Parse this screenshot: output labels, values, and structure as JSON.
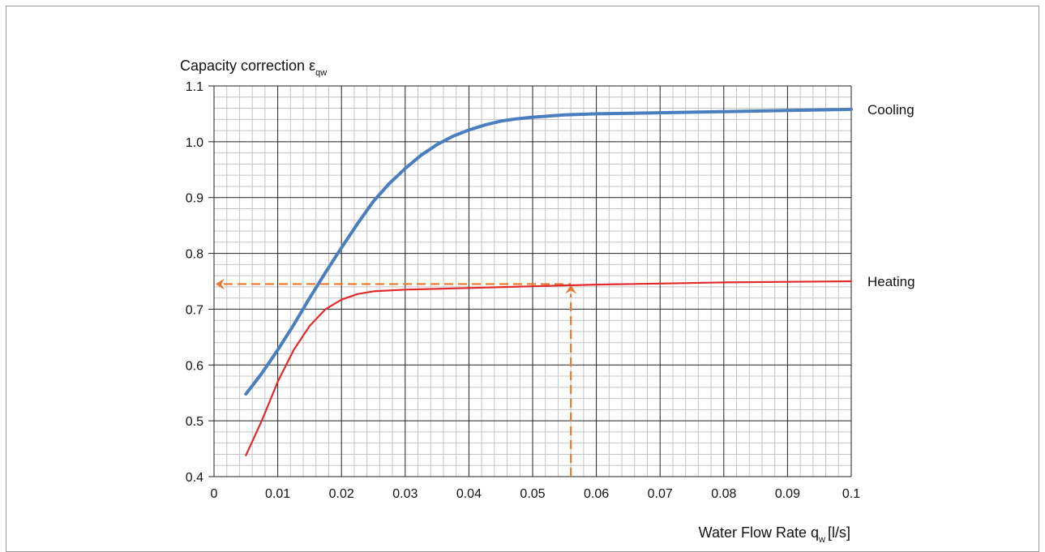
{
  "chart_data": {
    "type": "line",
    "title": "",
    "ylabel": {
      "main": "Capacity correction ε",
      "sub": "qw"
    },
    "xlabel": {
      "main": "Water Flow Rate q",
      "sub": "w",
      "suffix": "[l/s]"
    },
    "xlim": [
      0,
      0.1
    ],
    "ylim": [
      0.4,
      1.1
    ],
    "x_ticks": [
      0,
      0.01,
      0.02,
      0.03,
      0.04,
      0.05,
      0.06,
      0.07,
      0.08,
      0.09,
      0.1
    ],
    "x_tick_labels": [
      "0",
      "0.01",
      "0.02",
      "0.03",
      "0.04",
      "0.05",
      "0.06",
      "0.07",
      "0.08",
      "0.09",
      "0.1"
    ],
    "y_ticks": [
      0.4,
      0.5,
      0.6,
      0.7,
      0.8,
      0.9,
      1.0,
      1.1
    ],
    "y_tick_labels": [
      "0.4",
      "0.5",
      "0.6",
      "0.7",
      "0.8",
      "0.9",
      "1.0",
      "1.1"
    ],
    "grid": {
      "major": true,
      "minor": true,
      "minor_per_major": 5
    },
    "series": [
      {
        "name": "Cooling",
        "color": "#4a7ebf",
        "points": [
          [
            0.005,
            0.548
          ],
          [
            0.0075,
            0.585
          ],
          [
            0.01,
            0.627
          ],
          [
            0.0125,
            0.672
          ],
          [
            0.015,
            0.72
          ],
          [
            0.0175,
            0.766
          ],
          [
            0.02,
            0.81
          ],
          [
            0.0225,
            0.853
          ],
          [
            0.025,
            0.893
          ],
          [
            0.0275,
            0.925
          ],
          [
            0.03,
            0.952
          ],
          [
            0.0325,
            0.976
          ],
          [
            0.035,
            0.995
          ],
          [
            0.0375,
            1.01
          ],
          [
            0.04,
            1.021
          ],
          [
            0.0425,
            1.03
          ],
          [
            0.045,
            1.037
          ],
          [
            0.0475,
            1.041
          ],
          [
            0.05,
            1.044
          ],
          [
            0.055,
            1.048
          ],
          [
            0.06,
            1.05
          ],
          [
            0.07,
            1.052
          ],
          [
            0.08,
            1.054
          ],
          [
            0.09,
            1.056
          ],
          [
            0.1,
            1.058
          ]
        ]
      },
      {
        "name": "Heating",
        "color": "#e02a2a",
        "points": [
          [
            0.005,
            0.438
          ],
          [
            0.0075,
            0.5
          ],
          [
            0.01,
            0.57
          ],
          [
            0.0125,
            0.627
          ],
          [
            0.015,
            0.67
          ],
          [
            0.0175,
            0.7
          ],
          [
            0.02,
            0.717
          ],
          [
            0.0225,
            0.727
          ],
          [
            0.025,
            0.732
          ],
          [
            0.03,
            0.735
          ],
          [
            0.04,
            0.738
          ],
          [
            0.05,
            0.741
          ],
          [
            0.06,
            0.744
          ],
          [
            0.07,
            0.746
          ],
          [
            0.08,
            0.748
          ],
          [
            0.09,
            0.749
          ],
          [
            0.1,
            0.75
          ]
        ]
      }
    ],
    "annotation": {
      "color": "#e87830",
      "x": 0.056,
      "y": 0.745,
      "arrow_vertical_direction": "up",
      "arrow_horizontal_direction": "left"
    }
  }
}
